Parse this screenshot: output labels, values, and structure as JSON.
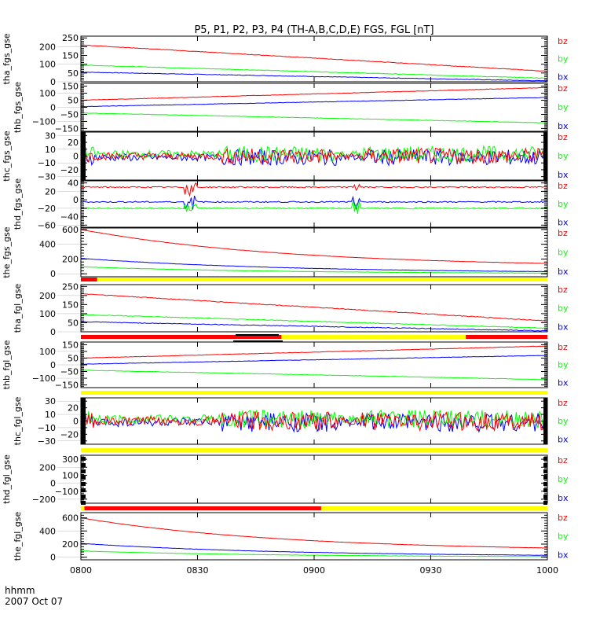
{
  "chart_data": {
    "type": "line",
    "title": "P5, P1, P2, P3, P4 (TH-A,B,C,D,E) FGS, FGL [nT]",
    "x_tick_labels": [
      "0800",
      "0830",
      "0900",
      "0930",
      "1000"
    ],
    "x_axis_label": "hhmm",
    "date_label": "2007 Oct 07",
    "xlim_hours": [
      8.0,
      10.0
    ],
    "legend": [
      {
        "name": "bz",
        "color": "#ff0000"
      },
      {
        "name": "by",
        "color": "#00ff00"
      },
      {
        "name": "bx",
        "color": "#0000ff"
      }
    ],
    "panels": [
      {
        "ylabel": "tha_fgs_gse",
        "ylim": [
          0,
          260
        ],
        "yticks": [
          250,
          200,
          150,
          100,
          50,
          0
        ],
        "mode": "trend",
        "series": {
          "bz": [
            210,
            60
          ],
          "by": [
            95,
            20
          ],
          "bx": [
            55,
            5
          ]
        },
        "noise": 1.5
      },
      {
        "ylabel": "thb_fgs_gse",
        "ylim": [
          -170,
          170
        ],
        "yticks": [
          150,
          100,
          50,
          0,
          -50,
          -100,
          -150
        ],
        "mode": "trend",
        "series": {
          "bz": [
            50,
            140
          ],
          "by": [
            -40,
            -110
          ],
          "bx": [
            5,
            70
          ]
        },
        "noise": 1.5
      },
      {
        "ylabel": "thc_fgs_gse",
        "ylim": [
          -35,
          35
        ],
        "yticks": [
          30,
          20,
          10,
          0,
          -10,
          -20,
          -30
        ],
        "mode": "noise",
        "series": {
          "bz": [
            0,
            0
          ],
          "by": [
            3,
            3
          ],
          "bx": [
            -2,
            -2
          ]
        },
        "noise": 9
      },
      {
        "ylabel": "thd_fgs_gse",
        "ylim": [
          -65,
          45
        ],
        "yticks": [
          40,
          20,
          0,
          -20,
          -40,
          -60
        ],
        "mode": "trend",
        "series": {
          "bz": [
            30,
            30
          ],
          "by": [
            -20,
            -20
          ],
          "bx": [
            -5,
            -5
          ]
        },
        "noise": 1.5
      },
      {
        "ylabel": "the_fgs_gse",
        "ylim": [
          -40,
          620
        ],
        "yticks": [
          600,
          400,
          200,
          0
        ],
        "mode": "trend",
        "series": {
          "bz": [
            600,
            90
          ],
          "by": [
            95,
            0
          ],
          "bx": [
            210,
            10
          ]
        },
        "noise": 2
      },
      {
        "ylabel": "tha_fgl_gse",
        "ylim": [
          0,
          260
        ],
        "yticks": [
          250,
          200,
          150,
          100,
          50,
          0
        ],
        "mode": "trend",
        "series": {
          "bz": [
            210,
            60
          ],
          "by": [
            95,
            20
          ],
          "bx": [
            55,
            5
          ]
        },
        "noise": 2
      },
      {
        "ylabel": "thb_fgl_gse",
        "ylim": [
          -170,
          170
        ],
        "yticks": [
          150,
          100,
          50,
          0,
          -50,
          -100,
          -150
        ],
        "mode": "trend",
        "series": {
          "bz": [
            50,
            140
          ],
          "by": [
            -40,
            -110
          ],
          "bx": [
            5,
            70
          ]
        },
        "noise": 1.5
      },
      {
        "ylabel": "thc_fgl_gse",
        "ylim": [
          -35,
          35
        ],
        "yticks": [
          30,
          20,
          10,
          0,
          -10,
          -20,
          -30
        ],
        "mode": "noise",
        "series": {
          "bz": [
            0,
            0
          ],
          "by": [
            3,
            3
          ],
          "bx": [
            -2,
            -2
          ]
        },
        "noise": 11
      },
      {
        "ylabel": "thd_fgl_gse",
        "ylim": [
          -250,
          350
        ],
        "yticks": [
          300,
          200,
          100,
          0,
          -100,
          -200
        ],
        "mode": "empty",
        "series": {},
        "noise": 0
      },
      {
        "ylabel": "the_fgl_gse",
        "ylim": [
          -40,
          680
        ],
        "yticks": [
          600,
          400,
          200,
          0
        ],
        "mode": "trend",
        "series": {
          "bz": [
            600,
            90
          ],
          "by": [
            95,
            0
          ],
          "bx": [
            210,
            10
          ]
        },
        "noise": 2
      }
    ],
    "mode_bars": [
      {
        "after_panel": 4,
        "segments": [
          {
            "from": 8.0,
            "to": 8.07,
            "color": "#ff0000"
          },
          {
            "from": 8.07,
            "to": 10.0,
            "color": "#ffff00"
          }
        ]
      },
      {
        "after_panel": 5,
        "segments": [
          {
            "from": 8.0,
            "to": 8.86,
            "color": "#ff0000"
          },
          {
            "from": 8.86,
            "to": 9.65,
            "color": "#ffff00"
          },
          {
            "from": 9.65,
            "to": 10.0,
            "color": "#ff0000"
          }
        ]
      },
      {
        "after_panel": 6,
        "segments": [
          {
            "from": 8.0,
            "to": 10.0,
            "color": "#ffff00"
          }
        ]
      },
      {
        "after_panel": 7,
        "segments": [
          {
            "from": 8.0,
            "to": 10.0,
            "color": "#ffff00"
          }
        ]
      },
      {
        "after_panel": 8,
        "segments": [
          {
            "from": 8.0,
            "to": 8.015,
            "color": "#ffff00"
          },
          {
            "from": 8.015,
            "to": 9.03,
            "color": "#ff0000"
          },
          {
            "from": 9.03,
            "to": 10.0,
            "color": "#ffff00"
          }
        ]
      }
    ]
  }
}
